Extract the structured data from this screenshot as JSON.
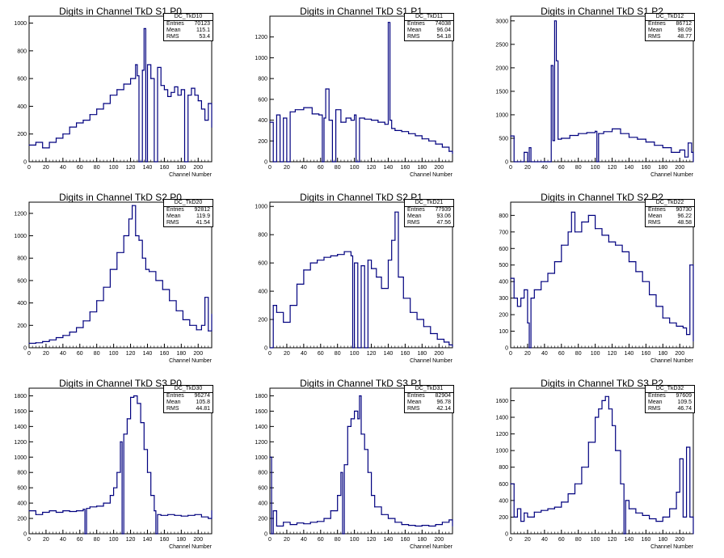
{
  "chart_data": [
    {
      "id": "TkD10",
      "type": "line",
      "title": "Digits in Channel TkD S1 P0",
      "xlabel": "Channel Number",
      "ylabel": "",
      "xlim": [
        0,
        216
      ],
      "ylim": [
        0,
        1050
      ],
      "xticks": [
        0,
        20,
        40,
        60,
        80,
        100,
        120,
        140,
        160,
        180,
        200
      ],
      "yticks": [
        0,
        200,
        400,
        600,
        800,
        1000
      ],
      "stats": {
        "name": "DC_TkD10",
        "entries": "70123",
        "mean": "115.1",
        "rms": "53.4"
      },
      "x": [
        0,
        8,
        16,
        24,
        32,
        40,
        48,
        56,
        64,
        72,
        80,
        88,
        96,
        104,
        112,
        120,
        126,
        128,
        130,
        134,
        136,
        138,
        140,
        144,
        148,
        152,
        156,
        160,
        164,
        168,
        172,
        176,
        180,
        184,
        188,
        192,
        196,
        200,
        204,
        208,
        212,
        216
      ],
      "values": [
        120,
        140,
        100,
        140,
        170,
        200,
        250,
        280,
        300,
        340,
        380,
        420,
        480,
        520,
        560,
        600,
        700,
        620,
        0,
        660,
        960,
        0,
        700,
        600,
        0,
        680,
        550,
        520,
        470,
        500,
        540,
        480,
        520,
        0,
        480,
        530,
        480,
        440,
        380,
        300,
        420,
        250
      ],
      "fill": "none"
    },
    {
      "id": "TkD11",
      "type": "line",
      "title": "Digits in Channel TkD S1 P1",
      "xlabel": "Channel Number",
      "ylabel": "",
      "xlim": [
        0,
        216
      ],
      "ylim": [
        0,
        1400
      ],
      "xticks": [
        0,
        20,
        40,
        60,
        80,
        100,
        120,
        140,
        160,
        180,
        200
      ],
      "yticks": [
        0,
        200,
        400,
        600,
        800,
        1000,
        1200
      ],
      "stats": {
        "name": "DC_TkD11",
        "entries": "74038",
        "mean": "96.04",
        "rms": "54.18"
      },
      "x": [
        0,
        4,
        8,
        12,
        16,
        20,
        24,
        30,
        40,
        50,
        58,
        62,
        64,
        66,
        70,
        74,
        78,
        84,
        90,
        96,
        100,
        102,
        106,
        112,
        120,
        128,
        136,
        140,
        142,
        144,
        148,
        156,
        164,
        172,
        180,
        188,
        196,
        204,
        212,
        216
      ],
      "values": [
        380,
        0,
        450,
        0,
        420,
        0,
        480,
        500,
        520,
        460,
        450,
        0,
        420,
        700,
        400,
        0,
        500,
        380,
        420,
        400,
        450,
        0,
        420,
        410,
        400,
        380,
        360,
        1340,
        400,
        320,
        300,
        290,
        270,
        250,
        220,
        200,
        170,
        140,
        100,
        80
      ],
      "fill": "none"
    },
    {
      "id": "TkD12",
      "type": "line",
      "title": "Digits in Channel TkD S1 P2",
      "xlabel": "Channel Number",
      "ylabel": "",
      "xlim": [
        0,
        216
      ],
      "ylim": [
        0,
        3100
      ],
      "xticks": [
        0,
        20,
        40,
        60,
        80,
        100,
        120,
        140,
        160,
        180,
        200
      ],
      "yticks": [
        0,
        500,
        1000,
        1500,
        2000,
        2500,
        3000
      ],
      "stats": {
        "name": "DC_TkD12",
        "entries": "86712",
        "mean": "98.09",
        "rms": "48.77"
      },
      "x": [
        0,
        4,
        8,
        12,
        16,
        20,
        22,
        24,
        28,
        32,
        36,
        40,
        44,
        46,
        48,
        50,
        52,
        54,
        56,
        60,
        70,
        80,
        90,
        100,
        102,
        104,
        110,
        120,
        130,
        140,
        150,
        160,
        170,
        180,
        190,
        200,
        206,
        210,
        214,
        216
      ],
      "values": [
        550,
        0,
        0,
        0,
        200,
        0,
        300,
        0,
        0,
        0,
        0,
        0,
        0,
        0,
        2050,
        450,
        3000,
        2150,
        480,
        500,
        560,
        600,
        620,
        650,
        0,
        600,
        640,
        700,
        600,
        520,
        480,
        420,
        350,
        300,
        200,
        250,
        100,
        400,
        200,
        0
      ],
      "fill": "none"
    },
    {
      "id": "TkD20",
      "type": "line",
      "title": "Digits in Channel TkD S2 P0",
      "xlabel": "Channel Number",
      "ylabel": "",
      "xlim": [
        0,
        216
      ],
      "ylim": [
        0,
        1300
      ],
      "xticks": [
        0,
        20,
        40,
        60,
        80,
        100,
        120,
        140,
        160,
        180,
        200
      ],
      "yticks": [
        0,
        200,
        400,
        600,
        800,
        1000,
        1200
      ],
      "stats": {
        "name": "DC_TkD20",
        "entries": "92812",
        "mean": "119.9",
        "rms": "41.54"
      },
      "x": [
        0,
        8,
        16,
        24,
        32,
        40,
        48,
        56,
        64,
        72,
        80,
        88,
        96,
        104,
        112,
        118,
        122,
        126,
        130,
        134,
        138,
        142,
        150,
        158,
        166,
        174,
        182,
        190,
        198,
        204,
        208,
        212,
        216
      ],
      "values": [
        40,
        45,
        55,
        70,
        90,
        110,
        140,
        180,
        240,
        320,
        420,
        540,
        700,
        850,
        1000,
        1150,
        1270,
        1000,
        960,
        800,
        700,
        680,
        600,
        520,
        420,
        330,
        250,
        200,
        160,
        200,
        450,
        150,
        300
      ],
      "fill": "none"
    },
    {
      "id": "TkD21",
      "type": "line",
      "title": "Digits in Channel TkD S2 P1",
      "xlabel": "Channel Number",
      "ylabel": "",
      "xlim": [
        0,
        216
      ],
      "ylim": [
        0,
        1030
      ],
      "xticks": [
        0,
        20,
        40,
        60,
        80,
        100,
        120,
        140,
        160,
        180,
        200
      ],
      "yticks": [
        0,
        200,
        400,
        600,
        800,
        1000
      ],
      "stats": {
        "name": "DC_TkD21",
        "entries": "77939",
        "mean": "93.06",
        "rms": "47.56"
      },
      "x": [
        0,
        4,
        8,
        16,
        24,
        32,
        40,
        48,
        56,
        64,
        72,
        80,
        88,
        96,
        98,
        100,
        104,
        108,
        112,
        116,
        120,
        126,
        132,
        140,
        144,
        148,
        152,
        158,
        166,
        174,
        182,
        190,
        198,
        206,
        212,
        216
      ],
      "values": [
        0,
        300,
        250,
        180,
        300,
        450,
        550,
        600,
        620,
        640,
        650,
        660,
        680,
        650,
        0,
        600,
        0,
        580,
        0,
        620,
        560,
        500,
        420,
        620,
        760,
        960,
        500,
        350,
        250,
        200,
        150,
        100,
        60,
        40,
        20,
        10
      ],
      "fill": "none"
    },
    {
      "id": "TkD22",
      "type": "line",
      "title": "Digits in Channel TkD S2 P2",
      "xlabel": "Channel Number",
      "ylabel": "",
      "xlim": [
        0,
        216
      ],
      "ylim": [
        0,
        880
      ],
      "xticks": [
        0,
        20,
        40,
        60,
        80,
        100,
        120,
        140,
        160,
        180,
        200
      ],
      "yticks": [
        0,
        100,
        200,
        300,
        400,
        500,
        600,
        700,
        800
      ],
      "stats": {
        "name": "DC_TkD22",
        "entries": "90730",
        "mean": "96.22",
        "rms": "48.58"
      },
      "x": [
        0,
        4,
        8,
        12,
        16,
        20,
        22,
        24,
        28,
        36,
        44,
        52,
        60,
        68,
        72,
        76,
        84,
        92,
        100,
        108,
        116,
        124,
        132,
        140,
        148,
        156,
        164,
        172,
        180,
        188,
        196,
        204,
        208,
        212,
        216
      ],
      "values": [
        420,
        300,
        250,
        300,
        350,
        150,
        0,
        300,
        350,
        400,
        450,
        520,
        620,
        700,
        820,
        700,
        760,
        800,
        720,
        680,
        640,
        620,
        580,
        520,
        460,
        400,
        320,
        250,
        180,
        150,
        130,
        120,
        80,
        500,
        40
      ],
      "fill": "none"
    },
    {
      "id": "TkD30",
      "type": "line",
      "title": "Digits in Channel TkD S3 P0",
      "xlabel": "Channel Number",
      "ylabel": "",
      "xlim": [
        0,
        216
      ],
      "ylim": [
        0,
        1900
      ],
      "xticks": [
        0,
        20,
        40,
        60,
        80,
        100,
        120,
        140,
        160,
        180,
        200
      ],
      "yticks": [
        0,
        200,
        400,
        600,
        800,
        1000,
        1200,
        1400,
        1600,
        1800
      ],
      "stats": {
        "name": "DC_TkD30",
        "entries": "96274",
        "mean": "105.8",
        "rms": "44.81"
      },
      "x": [
        0,
        8,
        16,
        24,
        32,
        40,
        48,
        56,
        64,
        66,
        68,
        72,
        80,
        88,
        96,
        100,
        104,
        108,
        110,
        112,
        116,
        120,
        124,
        128,
        132,
        136,
        140,
        144,
        148,
        150,
        152,
        156,
        164,
        172,
        180,
        188,
        196,
        204,
        212,
        216
      ],
      "values": [
        300,
        250,
        280,
        300,
        280,
        300,
        290,
        300,
        320,
        0,
        330,
        350,
        360,
        400,
        500,
        600,
        800,
        1200,
        0,
        1300,
        1500,
        1780,
        1800,
        1700,
        1450,
        1100,
        800,
        500,
        300,
        0,
        250,
        240,
        250,
        240,
        230,
        240,
        250,
        220,
        200,
        300
      ],
      "fill": "none"
    },
    {
      "id": "TkD31",
      "type": "line",
      "title": "Digits in Channel TkD S3 P1",
      "xlabel": "Channel Number",
      "ylabel": "",
      "xlim": [
        0,
        216
      ],
      "ylim": [
        0,
        1900
      ],
      "xticks": [
        0,
        20,
        40,
        60,
        80,
        100,
        120,
        140,
        160,
        180,
        200
      ],
      "yticks": [
        0,
        200,
        400,
        600,
        800,
        1000,
        1200,
        1400,
        1600,
        1800
      ],
      "stats": {
        "name": "DC_TkD31",
        "entries": "82904",
        "mean": "96.78",
        "rms": "42.14"
      },
      "x": [
        0,
        2,
        4,
        8,
        16,
        24,
        32,
        40,
        48,
        56,
        64,
        72,
        80,
        84,
        86,
        88,
        92,
        96,
        100,
        104,
        106,
        108,
        112,
        116,
        120,
        124,
        132,
        140,
        148,
        156,
        164,
        172,
        180,
        188,
        196,
        204,
        212,
        216
      ],
      "values": [
        1000,
        0,
        300,
        100,
        150,
        120,
        140,
        130,
        150,
        160,
        200,
        300,
        500,
        800,
        0,
        900,
        1400,
        1500,
        1600,
        1500,
        1800,
        1300,
        1100,
        800,
        500,
        350,
        250,
        200,
        150,
        120,
        110,
        100,
        110,
        100,
        120,
        150,
        180,
        100
      ],
      "fill": "none"
    },
    {
      "id": "TkD32",
      "type": "line",
      "title": "Digits in Channel TkD S3 P2",
      "xlabel": "Channel Number",
      "ylabel": "",
      "xlim": [
        0,
        216
      ],
      "ylim": [
        0,
        1750
      ],
      "xticks": [
        0,
        20,
        40,
        60,
        80,
        100,
        120,
        140,
        160,
        180,
        200
      ],
      "yticks": [
        0,
        200,
        400,
        600,
        800,
        1000,
        1200,
        1400,
        1600
      ],
      "stats": {
        "name": "DC_TkD32",
        "entries": "97609",
        "mean": "109.5",
        "rms": "46.74"
      },
      "x": [
        0,
        4,
        8,
        12,
        16,
        20,
        28,
        36,
        44,
        52,
        60,
        68,
        76,
        84,
        92,
        100,
        104,
        108,
        112,
        116,
        120,
        124,
        130,
        134,
        136,
        140,
        148,
        156,
        164,
        172,
        180,
        188,
        196,
        200,
        204,
        208,
        212,
        216
      ],
      "values": [
        600,
        200,
        300,
        150,
        250,
        200,
        260,
        280,
        300,
        320,
        380,
        480,
        600,
        800,
        1100,
        1400,
        1500,
        1600,
        1650,
        1500,
        1300,
        1000,
        600,
        0,
        400,
        300,
        250,
        220,
        180,
        150,
        200,
        300,
        500,
        900,
        200,
        1040,
        200,
        0
      ],
      "fill": "none"
    }
  ],
  "stats_labels": {
    "entries": "Entries",
    "mean": "Mean",
    "rms": "RMS"
  },
  "colors": {
    "line": "#00007f",
    "axis": "#000000",
    "background": "#ffffff"
  }
}
